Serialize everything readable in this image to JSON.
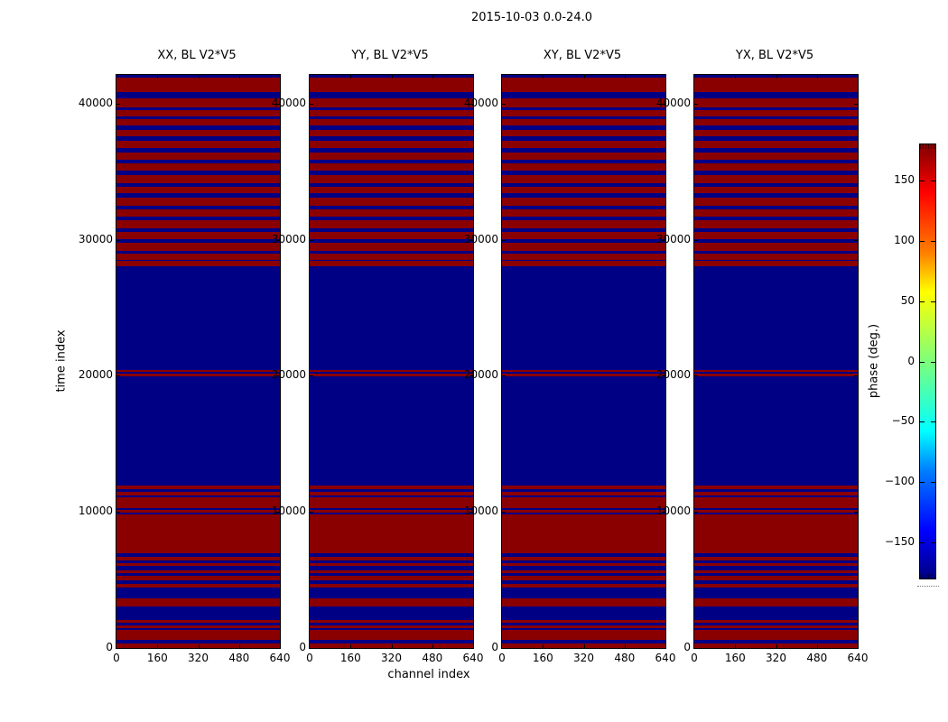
{
  "chart_data": {
    "type": "heatmap",
    "title": "2015-10-03 0.0-24.0",
    "panel_titles": [
      "XX, BL V2*V5",
      "YY, BL V2*V5",
      "XY, BL V2*V5",
      "YX, BL V2*V5"
    ],
    "xlabel": "channel index",
    "ylabel": "time index",
    "colorbar_label": "phase (deg.)",
    "x_ticks": [
      0,
      160,
      320,
      480,
      640
    ],
    "y_ticks": [
      0,
      10000,
      20000,
      30000,
      40000
    ],
    "x_range": [
      0,
      640
    ],
    "y_range": [
      0,
      42100
    ],
    "colorbar_ticks": [
      150,
      100,
      50,
      0,
      -50,
      -100,
      -150
    ],
    "colorbar_range": [
      -180,
      180
    ],
    "grid": false,
    "legend": "colorbar-right",
    "phase_positive_color": "#8a0000",
    "phase_negative_color": "#000084",
    "colorbar_gradient": [
      {
        "at": "0%",
        "color": "#000080"
      },
      {
        "at": "11%",
        "color": "#0000ff"
      },
      {
        "at": "25%",
        "color": "#0080ff"
      },
      {
        "at": "34%",
        "color": "#00ffff"
      },
      {
        "at": "50%",
        "color": "#7dff7a"
      },
      {
        "at": "66%",
        "color": "#ffff00"
      },
      {
        "at": "75%",
        "color": "#ff8000"
      },
      {
        "at": "89%",
        "color": "#ff0000"
      },
      {
        "at": "100%",
        "color": "#800000"
      }
    ],
    "note": "All four polarization panels show identical horizontal banding: phase saturates at about +180 deg (dark red) or -180 deg (dark blue), constant across all channels; bands listed below are the time-index ranges that are dark blue (~-180 deg), everything else is dark red (~+180 deg).",
    "blue_time_bands": [
      [
        41900,
        42100
      ],
      [
        40400,
        40850
      ],
      [
        39520,
        39720
      ],
      [
        38860,
        39060
      ],
      [
        38070,
        38400
      ],
      [
        37270,
        37600
      ],
      [
        36410,
        36740
      ],
      [
        35620,
        35880
      ],
      [
        34760,
        35090
      ],
      [
        33890,
        34160
      ],
      [
        33100,
        33430
      ],
      [
        32240,
        32500
      ],
      [
        31450,
        31710
      ],
      [
        30580,
        30850
      ],
      [
        29790,
        30060
      ],
      [
        29000,
        29190
      ],
      [
        28460,
        28530
      ],
      [
        20390,
        28070
      ],
      [
        20130,
        20260
      ],
      [
        11920,
        19990
      ],
      [
        11450,
        11650
      ],
      [
        11060,
        11190
      ],
      [
        10130,
        10260
      ],
      [
        9800,
        9930
      ],
      [
        6690,
        6950
      ],
      [
        6220,
        6420
      ],
      [
        5690,
        6020
      ],
      [
        5300,
        5490
      ],
      [
        4700,
        4970
      ],
      [
        3640,
        4440
      ],
      [
        2050,
        3050
      ],
      [
        1650,
        1850
      ],
      [
        1320,
        1460
      ],
      [
        330,
        600
      ]
    ]
  }
}
